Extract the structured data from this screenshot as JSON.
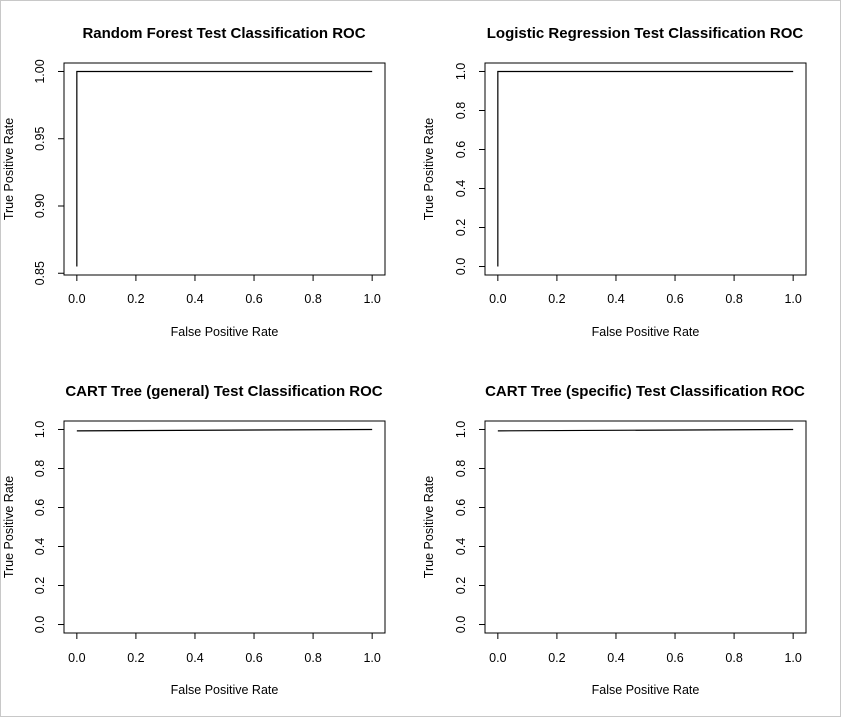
{
  "chart_data": [
    {
      "type": "line",
      "title": "Random Forest Test Classification ROC",
      "xlabel": "False Positive Rate",
      "ylabel": "True Positive Rate",
      "xlim": [
        0,
        1
      ],
      "ylim": [
        0.855,
        1.0
      ],
      "xticks": [
        0.0,
        0.2,
        0.4,
        0.6,
        0.8,
        1.0
      ],
      "xtick_labels": [
        "0.0",
        "0.2",
        "0.4",
        "0.6",
        "0.8",
        "1.0"
      ],
      "yticks": [
        0.85,
        0.9,
        0.95,
        1.0
      ],
      "ytick_labels": [
        "0.85",
        "0.90",
        "0.95",
        "1.00"
      ],
      "grid": false,
      "series": [
        {
          "x": [
            0.0,
            0.0,
            1.0
          ],
          "y": [
            0.855,
            1.0,
            1.0
          ]
        }
      ]
    },
    {
      "type": "line",
      "title": "Logistic Regression Test Classification ROC",
      "xlabel": "False Positive Rate",
      "ylabel": "True Positive Rate",
      "xlim": [
        0,
        1
      ],
      "ylim": [
        0,
        1
      ],
      "xticks": [
        0.0,
        0.2,
        0.4,
        0.6,
        0.8,
        1.0
      ],
      "xtick_labels": [
        "0.0",
        "0.2",
        "0.4",
        "0.6",
        "0.8",
        "1.0"
      ],
      "yticks": [
        0.0,
        0.2,
        0.4,
        0.6,
        0.8,
        1.0
      ],
      "ytick_labels": [
        "0.0",
        "0.2",
        "0.4",
        "0.6",
        "0.8",
        "1.0"
      ],
      "grid": false,
      "series": [
        {
          "x": [
            0.0,
            0.0,
            1.0
          ],
          "y": [
            0.0,
            1.0,
            1.0
          ]
        }
      ]
    },
    {
      "type": "line",
      "title": "CART Tree (general) Test Classification ROC",
      "xlabel": "False Positive Rate",
      "ylabel": "True Positive Rate",
      "xlim": [
        0,
        1
      ],
      "ylim": [
        0,
        1
      ],
      "xticks": [
        0.0,
        0.2,
        0.4,
        0.6,
        0.8,
        1.0
      ],
      "xtick_labels": [
        "0.0",
        "0.2",
        "0.4",
        "0.6",
        "0.8",
        "1.0"
      ],
      "yticks": [
        0.0,
        0.2,
        0.4,
        0.6,
        0.8,
        1.0
      ],
      "ytick_labels": [
        "0.0",
        "0.2",
        "0.4",
        "0.6",
        "0.8",
        "1.0"
      ],
      "grid": false,
      "series": [
        {
          "x": [
            0.0,
            1.0
          ],
          "y": [
            0.993,
            1.0
          ]
        }
      ]
    },
    {
      "type": "line",
      "title": "CART Tree (specific) Test Classification ROC",
      "xlabel": "False Positive Rate",
      "ylabel": "True Positive Rate",
      "xlim": [
        0,
        1
      ],
      "ylim": [
        0,
        1
      ],
      "xticks": [
        0.0,
        0.2,
        0.4,
        0.6,
        0.8,
        1.0
      ],
      "xtick_labels": [
        "0.0",
        "0.2",
        "0.4",
        "0.6",
        "0.8",
        "1.0"
      ],
      "yticks": [
        0.0,
        0.2,
        0.4,
        0.6,
        0.8,
        1.0
      ],
      "ytick_labels": [
        "0.0",
        "0.2",
        "0.4",
        "0.6",
        "0.8",
        "1.0"
      ],
      "grid": false,
      "series": [
        {
          "x": [
            0.0,
            1.0
          ],
          "y": [
            0.993,
            1.0
          ]
        }
      ]
    }
  ]
}
